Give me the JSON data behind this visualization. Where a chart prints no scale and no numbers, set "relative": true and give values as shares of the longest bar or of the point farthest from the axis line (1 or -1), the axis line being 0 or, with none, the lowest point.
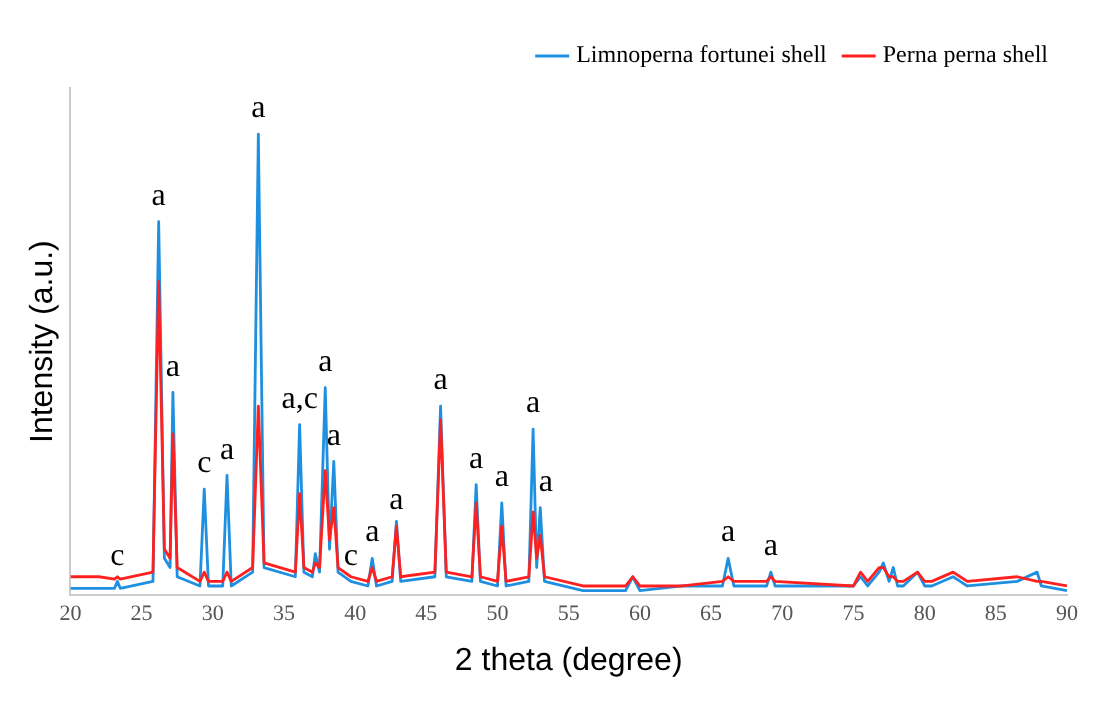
{
  "chart_data": {
    "type": "line",
    "relative": true,
    "xlabel": "2 theta (degree)",
    "ylabel": "Intensity (a.u.)",
    "xlim": [
      20,
      90
    ],
    "xticks": [
      20,
      25,
      30,
      35,
      40,
      45,
      50,
      55,
      60,
      65,
      70,
      75,
      80,
      85,
      90
    ],
    "tick_labels": "x",
    "grid": false,
    "legend": "top right",
    "marker": "none",
    "line_style": "solid",
    "x": [
      20,
      22,
      23.1,
      23.3,
      23.5,
      25.8,
      26.2,
      26.6,
      27.0,
      27.2,
      27.5,
      29.1,
      29.4,
      29.7,
      30.7,
      31.0,
      31.3,
      32.8,
      33.2,
      33.6,
      35.8,
      36.1,
      36.4,
      37.0,
      37.2,
      37.5,
      37.9,
      38.2,
      38.5,
      38.8,
      39.7,
      40.9,
      41.2,
      41.5,
      42.6,
      42.9,
      43.2,
      45.6,
      46.0,
      46.4,
      48.2,
      48.5,
      48.8,
      50.0,
      50.3,
      50.6,
      52.2,
      52.5,
      52.75,
      53.0,
      53.3,
      56,
      59,
      59.5,
      60,
      63,
      65.8,
      66.2,
      66.6,
      68.9,
      69.2,
      69.5,
      75,
      75.5,
      76,
      76.8,
      77.1,
      77.5,
      77.8,
      78.1,
      78.5,
      79.5,
      80,
      80.5,
      82,
      82.5,
      83,
      86.5,
      87.9,
      88.2,
      90
    ],
    "series": [
      {
        "name": "Perna perna shell",
        "color": "#ff2020",
        "values": [
          0.04,
          0.04,
          0.035,
          0.04,
          0.035,
          0.05,
          0.68,
          0.1,
          0.08,
          0.35,
          0.06,
          0.03,
          0.05,
          0.03,
          0.03,
          0.05,
          0.03,
          0.06,
          0.41,
          0.07,
          0.05,
          0.22,
          0.06,
          0.05,
          0.07,
          0.06,
          0.27,
          0.12,
          0.19,
          0.06,
          0.04,
          0.03,
          0.06,
          0.03,
          0.04,
          0.15,
          0.04,
          0.05,
          0.38,
          0.05,
          0.04,
          0.2,
          0.04,
          0.03,
          0.15,
          0.03,
          0.04,
          0.18,
          0.08,
          0.13,
          0.04,
          0.02,
          0.02,
          0.04,
          0.02,
          0.02,
          0.03,
          0.04,
          0.03,
          0.03,
          0.04,
          0.03,
          0.02,
          0.05,
          0.03,
          0.06,
          0.06,
          0.04,
          0.04,
          0.03,
          0.03,
          0.05,
          0.03,
          0.03,
          0.05,
          0.04,
          0.03,
          0.04,
          0.03,
          0.03,
          0.02
        ]
      },
      {
        "name": "Limnoperna fortunei shell",
        "color": "#1f8fe0",
        "values": [
          0.015,
          0.015,
          0.015,
          0.03,
          0.015,
          0.03,
          0.81,
          0.08,
          0.06,
          0.44,
          0.04,
          0.02,
          0.23,
          0.02,
          0.02,
          0.26,
          0.02,
          0.05,
          1.0,
          0.06,
          0.04,
          0.37,
          0.05,
          0.04,
          0.09,
          0.05,
          0.45,
          0.1,
          0.29,
          0.05,
          0.03,
          0.02,
          0.08,
          0.02,
          0.03,
          0.16,
          0.03,
          0.04,
          0.41,
          0.04,
          0.03,
          0.24,
          0.03,
          0.02,
          0.2,
          0.02,
          0.03,
          0.36,
          0.06,
          0.19,
          0.03,
          0.01,
          0.01,
          0.04,
          0.01,
          0.02,
          0.02,
          0.08,
          0.02,
          0.02,
          0.05,
          0.02,
          0.02,
          0.04,
          0.02,
          0.05,
          0.07,
          0.03,
          0.06,
          0.02,
          0.02,
          0.05,
          0.02,
          0.02,
          0.04,
          0.03,
          0.02,
          0.03,
          0.05,
          0.02,
          0.01
        ]
      }
    ],
    "annotations": [
      {
        "text": "c",
        "x": 23.3,
        "y": 0.05
      },
      {
        "text": "a",
        "x": 26.2,
        "y": 0.83
      },
      {
        "text": "a",
        "x": 27.2,
        "y": 0.46
      },
      {
        "text": "c",
        "x": 29.4,
        "y": 0.25
      },
      {
        "text": "a",
        "x": 31.0,
        "y": 0.28
      },
      {
        "text": "a",
        "x": 33.2,
        "y": 1.02
      },
      {
        "text": "a,c",
        "x": 36.1,
        "y": 0.39
      },
      {
        "text": "a",
        "x": 37.9,
        "y": 0.47
      },
      {
        "text": "a",
        "x": 38.5,
        "y": 0.31
      },
      {
        "text": "c",
        "x": 39.7,
        "y": 0.05
      },
      {
        "text": "a",
        "x": 41.2,
        "y": 0.1
      },
      {
        "text": "a",
        "x": 42.9,
        "y": 0.17
      },
      {
        "text": "a",
        "x": 46.0,
        "y": 0.43
      },
      {
        "text": "a",
        "x": 48.5,
        "y": 0.26
      },
      {
        "text": "a",
        "x": 50.3,
        "y": 0.22
      },
      {
        "text": "a",
        "x": 52.5,
        "y": 0.38
      },
      {
        "text": "a",
        "x": 53.4,
        "y": 0.21
      },
      {
        "text": "a",
        "x": 66.2,
        "y": 0.1
      },
      {
        "text": "a",
        "x": 69.2,
        "y": 0.07
      }
    ]
  }
}
